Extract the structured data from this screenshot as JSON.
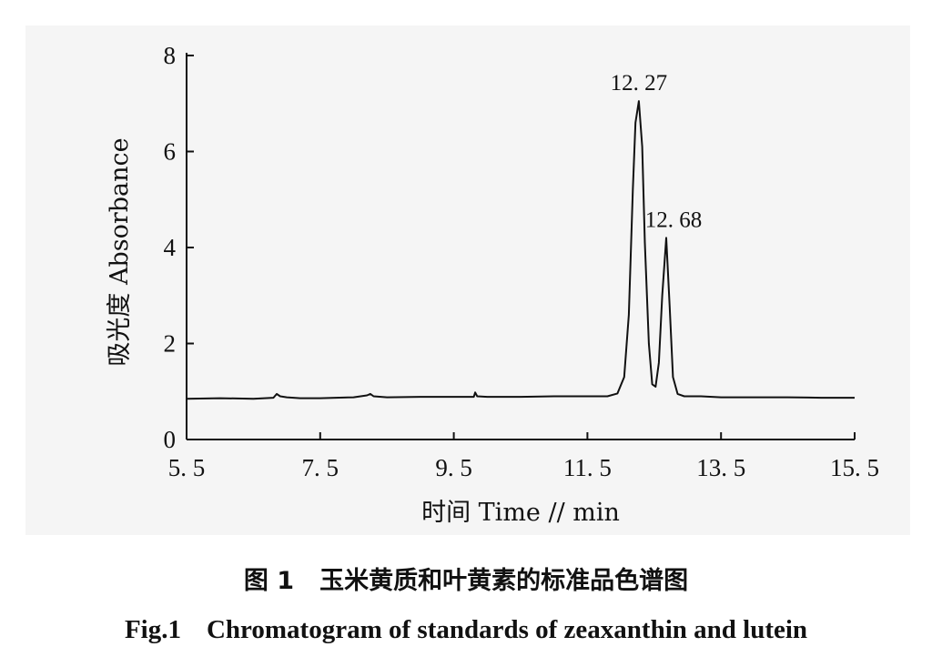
{
  "chart_data": {
    "type": "line",
    "title": "",
    "xlabel": "时间 Time // min",
    "ylabel": "吸光度 Absorbance",
    "xlim": [
      5.5,
      15.5
    ],
    "ylim": [
      0,
      8
    ],
    "x_ticks": [
      "5. 5",
      "7. 5",
      "9. 5",
      "11. 5",
      "13. 5",
      "15. 5"
    ],
    "x_tick_values": [
      5.5,
      7.5,
      9.5,
      11.5,
      13.5,
      15.5
    ],
    "y_ticks": [
      "0",
      "2",
      "4",
      "6",
      "8"
    ],
    "y_tick_values": [
      0,
      2,
      4,
      6,
      8
    ],
    "grid": false,
    "series": [
      {
        "x": [
          5.5,
          6.0,
          6.5,
          6.8,
          6.85,
          6.9,
          7.0,
          7.2,
          7.5,
          8.0,
          8.2,
          8.25,
          8.3,
          8.5,
          9.0,
          9.5,
          9.8,
          9.82,
          9.85,
          10.0,
          10.5,
          11.0,
          11.5,
          11.8,
          11.95,
          12.05,
          12.12,
          12.18,
          12.22,
          12.27,
          12.32,
          12.36,
          12.42,
          12.47,
          12.52,
          12.57,
          12.62,
          12.68,
          12.73,
          12.78,
          12.85,
          12.95,
          13.2,
          13.5,
          14.0,
          14.5,
          15.0,
          15.5
        ],
        "y": [
          0.85,
          0.86,
          0.85,
          0.87,
          0.95,
          0.9,
          0.88,
          0.86,
          0.86,
          0.88,
          0.92,
          0.95,
          0.9,
          0.88,
          0.89,
          0.89,
          0.89,
          0.98,
          0.9,
          0.89,
          0.89,
          0.9,
          0.9,
          0.9,
          0.96,
          1.3,
          2.6,
          5.2,
          6.6,
          7.05,
          6.1,
          4.1,
          2.0,
          1.15,
          1.1,
          1.6,
          3.0,
          4.2,
          2.8,
          1.3,
          0.95,
          0.9,
          0.9,
          0.88,
          0.88,
          0.88,
          0.87,
          0.87
        ]
      }
    ],
    "annotations": [
      {
        "text": "12. 27",
        "x": 12.27,
        "y": 7.05
      },
      {
        "text": "12. 68",
        "x": 12.68,
        "y": 4.2
      }
    ]
  },
  "caption": {
    "cn_label": "图 1",
    "cn_text": "玉米黄质和叶黄素的标准品色谱图",
    "en_label": "Fig.1",
    "en_text": "Chromatogram of standards of zeaxanthin and lutein"
  }
}
